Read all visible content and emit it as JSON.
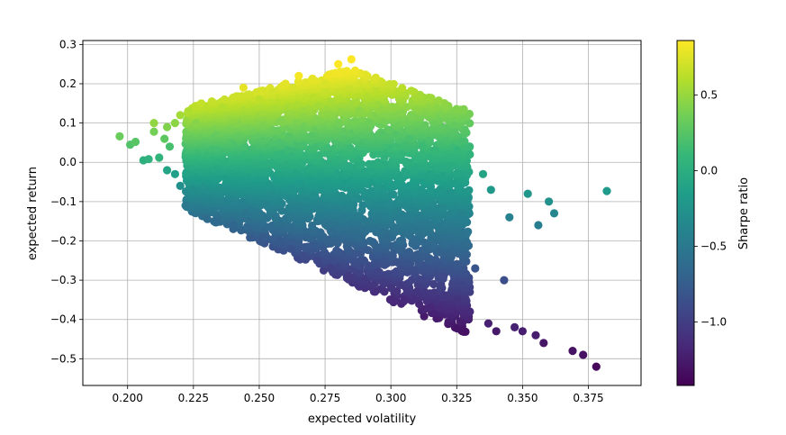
{
  "chart_data": {
    "type": "scatter",
    "xlabel": "expected volatility",
    "ylabel": "expected return",
    "xlim": [
      0.183,
      0.395
    ],
    "ylim": [
      -0.568,
      0.31
    ],
    "xticks": [
      0.2,
      0.225,
      0.25,
      0.275,
      0.3,
      0.325,
      0.35,
      0.375
    ],
    "xtick_labels": [
      "0.200",
      "0.225",
      "0.250",
      "0.275",
      "0.300",
      "0.325",
      "0.350",
      "0.375"
    ],
    "yticks": [
      -0.5,
      -0.4,
      -0.3,
      -0.2,
      -0.1,
      0.0,
      0.1,
      0.2,
      0.3
    ],
    "ytick_labels": [
      "−0.5",
      "−0.4",
      "−0.3",
      "−0.2",
      "−0.1",
      "0.0",
      "0.1",
      "0.2",
      "0.3"
    ],
    "grid": true,
    "colorbar": {
      "label": "Sharpe ratio",
      "range": [
        -1.42,
        0.86
      ],
      "ticks": [
        -1.0,
        -0.5,
        0.0,
        0.5
      ],
      "tick_labels": [
        "−1.0",
        "−0.5",
        "0.0",
        "0.5"
      ],
      "colormap": "viridis"
    },
    "colormap_stops": [
      "#440154",
      "#482878",
      "#3e4989",
      "#31688e",
      "#26828e",
      "#1f9e89",
      "#35b779",
      "#6ece58",
      "#b5de2b",
      "#fde725"
    ],
    "points": [
      [
        0.197,
        0.066
      ],
      [
        0.201,
        0.045
      ],
      [
        0.203,
        0.052
      ],
      [
        0.206,
        0.005
      ],
      [
        0.208,
        0.008
      ],
      [
        0.21,
        0.1
      ],
      [
        0.21,
        0.078
      ],
      [
        0.212,
        0.012
      ],
      [
        0.214,
        0.06
      ],
      [
        0.215,
        0.09
      ],
      [
        0.215,
        -0.02
      ],
      [
        0.216,
        0.04
      ],
      [
        0.218,
        -0.03
      ],
      [
        0.218,
        0.1
      ],
      [
        0.22,
        -0.06
      ],
      [
        0.22,
        0.12
      ],
      [
        0.222,
        -0.11
      ],
      [
        0.223,
        0.13
      ],
      [
        0.225,
        -0.07
      ],
      [
        0.226,
        0.1
      ],
      [
        0.228,
        0.15
      ],
      [
        0.23,
        -0.142
      ],
      [
        0.232,
        0.155
      ],
      [
        0.234,
        -0.15
      ],
      [
        0.236,
        0.14
      ],
      [
        0.24,
        -0.16
      ],
      [
        0.244,
        0.19
      ],
      [
        0.245,
        -0.13
      ],
      [
        0.25,
        0.16
      ],
      [
        0.252,
        -0.19
      ],
      [
        0.255,
        0.18
      ],
      [
        0.258,
        -0.2
      ],
      [
        0.26,
        0.2
      ],
      [
        0.262,
        -0.22
      ],
      [
        0.265,
        0.22
      ],
      [
        0.267,
        -0.24
      ],
      [
        0.27,
        0.21
      ],
      [
        0.272,
        -0.25
      ],
      [
        0.275,
        0.2
      ],
      [
        0.277,
        -0.27
      ],
      [
        0.28,
        0.25
      ],
      [
        0.282,
        0.23
      ],
      [
        0.285,
        0.262
      ],
      [
        0.284,
        -0.29
      ],
      [
        0.288,
        0.13
      ],
      [
        0.29,
        -0.3
      ],
      [
        0.292,
        0.1
      ],
      [
        0.295,
        -0.28
      ],
      [
        0.297,
        0.07
      ],
      [
        0.3,
        -0.32
      ],
      [
        0.302,
        0.07
      ],
      [
        0.305,
        -0.35
      ],
      [
        0.307,
        0.06
      ],
      [
        0.31,
        -0.33
      ],
      [
        0.312,
        0.04
      ],
      [
        0.315,
        -0.37
      ],
      [
        0.315,
        -0.03
      ],
      [
        0.317,
        0.03
      ],
      [
        0.32,
        -0.29
      ],
      [
        0.322,
        -0.08
      ],
      [
        0.325,
        -0.35
      ],
      [
        0.325,
        0.03
      ],
      [
        0.327,
        -0.13
      ],
      [
        0.33,
        -0.38
      ],
      [
        0.33,
        0.02
      ],
      [
        0.332,
        -0.27
      ],
      [
        0.335,
        -0.03
      ],
      [
        0.337,
        -0.41
      ],
      [
        0.338,
        -0.07
      ],
      [
        0.34,
        -0.43
      ],
      [
        0.343,
        -0.3
      ],
      [
        0.345,
        -0.14
      ],
      [
        0.347,
        -0.42
      ],
      [
        0.35,
        -0.43
      ],
      [
        0.352,
        -0.08
      ],
      [
        0.355,
        -0.44
      ],
      [
        0.356,
        -0.16
      ],
      [
        0.358,
        -0.46
      ],
      [
        0.36,
        -0.1
      ],
      [
        0.362,
        -0.13
      ],
      [
        0.369,
        -0.48
      ],
      [
        0.373,
        -0.49
      ],
      [
        0.378,
        -0.52
      ],
      [
        0.382,
        -0.073
      ]
    ]
  }
}
